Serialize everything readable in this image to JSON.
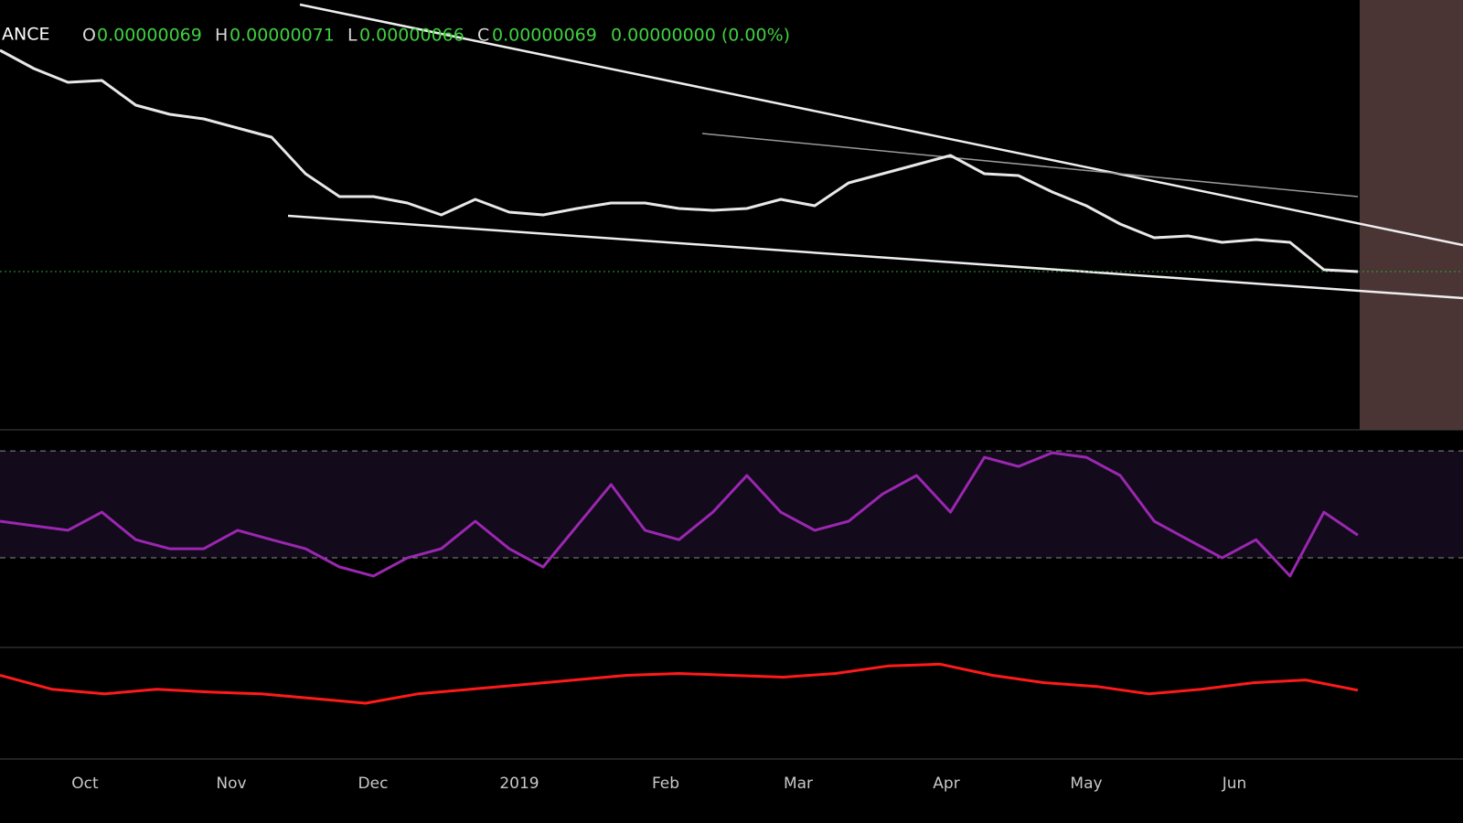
{
  "header": {
    "symbol": "ANCE",
    "open_label": "O",
    "open": "0.00000069",
    "high_label": "H",
    "high": "0.00000071",
    "low_label": "L",
    "low": "0.00000066",
    "close_label": "C",
    "close": "0.00000069",
    "change": "0.00000000 (0.00%)"
  },
  "chart_data": [
    {
      "type": "line",
      "name": "price",
      "values": [
        117.4,
        113.4,
        110.4,
        110.8,
        105.4,
        103.4,
        102.4,
        100.4,
        98.4,
        90.4,
        85.4,
        85.4,
        84,
        81.4,
        84.8,
        82,
        81.4,
        82.8,
        84,
        84,
        82.8,
        82.4,
        82.8,
        84.8,
        83.4,
        88.4,
        90.4,
        92.4,
        94.4,
        90.4,
        90,
        86.4,
        83.4,
        79.4,
        76.4,
        76.8,
        75.4,
        76,
        75.4,
        69.4,
        69
      ],
      "color": "#e8e8e8",
      "ylim": [
        34.4,
        128.4
      ]
    },
    {
      "type": "line",
      "name": "rsi",
      "values": [
        43.7,
        42,
        40.3,
        47.1,
        36.8,
        33.4,
        33.4,
        40.3,
        36.8,
        33.4,
        26.6,
        23.2,
        30,
        33.4,
        43.7,
        33.4,
        26.6,
        42,
        57.4,
        40.3,
        36.8,
        47.1,
        60.8,
        47.1,
        40.3,
        43.7,
        53.9,
        60.8,
        47.1,
        67.6,
        64.2,
        69.3,
        67.6,
        60.8,
        43.7,
        36.8,
        30,
        36.8,
        23.2,
        47.1,
        38.5
      ],
      "color": "#9b27b0",
      "ylim": [
        -3.5,
        77.9
      ],
      "bands": [
        30,
        70
      ]
    },
    {
      "type": "line",
      "name": "macd",
      "values": [
        30,
        15,
        10,
        15,
        12,
        10,
        5,
        0,
        10,
        15,
        20,
        25,
        30,
        32,
        30,
        28,
        32,
        40,
        42,
        30,
        22,
        18,
        10,
        15,
        22,
        25,
        14
      ],
      "color": "#ff1a1a",
      "ylim": [
        -60,
        60
      ]
    }
  ],
  "x_axis": {
    "labels": [
      "Oct",
      "Nov",
      "Dec",
      "2019",
      "Feb",
      "Mar",
      "Apr",
      "May",
      "Jun"
    ]
  }
}
